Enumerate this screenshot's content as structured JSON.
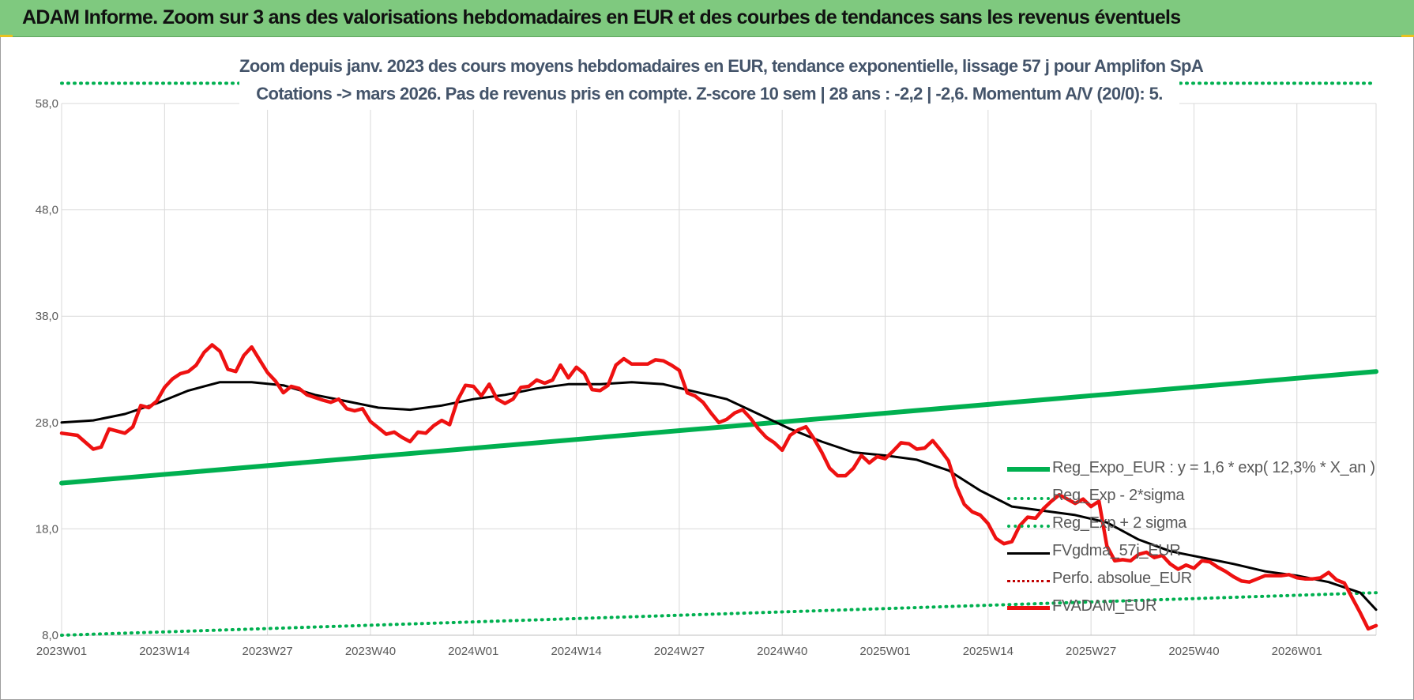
{
  "header": {
    "title": "ADAM Informe. Zoom sur 3 ans des valorisations hebdomadaires en EUR et des courbes de tendances sans les revenus éventuels"
  },
  "colors": {
    "header_bg": "#7fc97f",
    "reg_expo": "#00b050",
    "fvadam": "#ee1111",
    "fvgdma": "#000000",
    "perfo": "#c00000",
    "subtitle": "#44546a"
  },
  "chart_data": {
    "type": "line",
    "title_lines": [
      "Zoom depuis janv. 2023 des cours moyens hebdomadaires en EUR, tendance exponentielle, lissage 57 j pour Amplifon SpA",
      "Cotations -> mars 2026. Pas de revenus pris en compte. Z-score 10 sem | 28 ans : -2,2 | -2,6. Momentum A/V (20/0): 5."
    ],
    "x_ticks": [
      "2023W01",
      "2023W14",
      "2023W27",
      "2023W40",
      "2024W01",
      "2024W14",
      "2024W27",
      "2024W40",
      "2025W01",
      "2025W14",
      "2025W27",
      "2025W40",
      "2026W01"
    ],
    "x_range_weeks": [
      0,
      166
    ],
    "y_ticks": [
      "8,0",
      "18,0",
      "28,0",
      "38,0",
      "48,0",
      "58,0"
    ],
    "ylim": [
      8,
      58
    ],
    "grid": true,
    "legend_position": "bottom-right",
    "series": [
      {
        "name": "Reg_Expo_EUR : y = 1,6 * exp( 12,3% *  X_an )",
        "style": "solid-thick",
        "color": "#00b050",
        "points": [
          [
            0,
            22.3
          ],
          [
            166,
            32.8
          ]
        ]
      },
      {
        "name": "Reg_Exp - 2*sigma",
        "style": "dotted",
        "color": "#00b050",
        "points": [
          [
            0,
            8.0
          ],
          [
            166,
            12.0
          ]
        ]
      },
      {
        "name": "Reg_Exp + 2 sigma",
        "style": "dotted",
        "color": "#00b050",
        "points": [
          [
            0,
            59.9
          ],
          [
            166,
            59.9
          ]
        ]
      },
      {
        "name": "FVgdma_57j_EUR",
        "style": "solid",
        "color": "#000000",
        "points": [
          [
            0,
            28.0
          ],
          [
            4,
            28.2
          ],
          [
            8,
            28.8
          ],
          [
            12,
            29.8
          ],
          [
            16,
            31.0
          ],
          [
            20,
            31.8
          ],
          [
            24,
            31.8
          ],
          [
            28,
            31.5
          ],
          [
            32,
            30.6
          ],
          [
            36,
            30.0
          ],
          [
            40,
            29.4
          ],
          [
            44,
            29.2
          ],
          [
            48,
            29.6
          ],
          [
            52,
            30.2
          ],
          [
            56,
            30.6
          ],
          [
            60,
            31.2
          ],
          [
            64,
            31.6
          ],
          [
            68,
            31.6
          ],
          [
            72,
            31.8
          ],
          [
            76,
            31.6
          ],
          [
            80,
            30.9
          ],
          [
            84,
            30.2
          ],
          [
            88,
            28.8
          ],
          [
            92,
            27.4
          ],
          [
            96,
            26.2
          ],
          [
            100,
            25.2
          ],
          [
            104,
            24.9
          ],
          [
            108,
            24.5
          ],
          [
            112,
            23.5
          ],
          [
            116,
            21.6
          ],
          [
            120,
            20.1
          ],
          [
            124,
            19.7
          ],
          [
            128,
            19.3
          ],
          [
            132,
            18.6
          ],
          [
            136,
            17.0
          ],
          [
            140,
            15.9
          ],
          [
            144,
            15.3
          ],
          [
            148,
            14.7
          ],
          [
            152,
            14.0
          ],
          [
            156,
            13.6
          ],
          [
            160,
            13.0
          ],
          [
            164,
            12.0
          ],
          [
            166,
            10.4
          ]
        ]
      },
      {
        "name": "Perfo. absolue_EUR",
        "style": "dotted",
        "color": "#c00000",
        "points": []
      },
      {
        "name": "FVADAM_EUR",
        "style": "solid-thick",
        "color": "#ee1111",
        "points": [
          [
            0,
            27.0
          ],
          [
            2,
            26.8
          ],
          [
            4,
            25.5
          ],
          [
            5,
            25.7
          ],
          [
            6,
            27.4
          ],
          [
            8,
            27.0
          ],
          [
            9,
            27.6
          ],
          [
            10,
            29.6
          ],
          [
            11,
            29.4
          ],
          [
            12,
            30.0
          ],
          [
            13,
            31.3
          ],
          [
            14,
            32.1
          ],
          [
            15,
            32.6
          ],
          [
            16,
            32.8
          ],
          [
            17,
            33.4
          ],
          [
            18,
            34.6
          ],
          [
            19,
            35.3
          ],
          [
            20,
            34.7
          ],
          [
            21,
            33.0
          ],
          [
            22,
            32.8
          ],
          [
            23,
            34.3
          ],
          [
            24,
            35.1
          ],
          [
            25,
            33.9
          ],
          [
            26,
            32.7
          ],
          [
            27,
            31.9
          ],
          [
            28,
            30.8
          ],
          [
            29,
            31.4
          ],
          [
            30,
            31.2
          ],
          [
            31,
            30.6
          ],
          [
            33,
            30.1
          ],
          [
            34,
            29.9
          ],
          [
            35,
            30.2
          ],
          [
            36,
            29.3
          ],
          [
            37,
            29.1
          ],
          [
            38,
            29.3
          ],
          [
            39,
            28.1
          ],
          [
            40,
            27.5
          ],
          [
            41,
            26.9
          ],
          [
            42,
            27.1
          ],
          [
            43,
            26.6
          ],
          [
            44,
            26.2
          ],
          [
            45,
            27.1
          ],
          [
            46,
            27.0
          ],
          [
            47,
            27.7
          ],
          [
            48,
            28.2
          ],
          [
            49,
            27.8
          ],
          [
            50,
            30.1
          ],
          [
            51,
            31.5
          ],
          [
            52,
            31.4
          ],
          [
            53,
            30.5
          ],
          [
            54,
            31.6
          ],
          [
            55,
            30.2
          ],
          [
            56,
            29.8
          ],
          [
            57,
            30.2
          ],
          [
            58,
            31.3
          ],
          [
            59,
            31.4
          ],
          [
            60,
            32.0
          ],
          [
            61,
            31.7
          ],
          [
            62,
            32.0
          ],
          [
            63,
            33.4
          ],
          [
            64,
            32.2
          ],
          [
            65,
            33.2
          ],
          [
            66,
            32.6
          ],
          [
            67,
            31.1
          ],
          [
            68,
            31.0
          ],
          [
            69,
            31.5
          ],
          [
            70,
            33.4
          ],
          [
            71,
            34.0
          ],
          [
            72,
            33.5
          ],
          [
            74,
            33.5
          ],
          [
            75,
            33.9
          ],
          [
            76,
            33.8
          ],
          [
            77,
            33.4
          ],
          [
            78,
            32.9
          ],
          [
            79,
            30.8
          ],
          [
            80,
            30.5
          ],
          [
            81,
            29.9
          ],
          [
            82,
            28.9
          ],
          [
            83,
            28.0
          ],
          [
            84,
            28.3
          ],
          [
            85,
            28.9
          ],
          [
            86,
            29.2
          ],
          [
            87,
            28.4
          ],
          [
            88,
            27.4
          ],
          [
            89,
            26.6
          ],
          [
            90,
            26.1
          ],
          [
            91,
            25.4
          ],
          [
            92,
            26.8
          ],
          [
            93,
            27.3
          ],
          [
            94,
            27.6
          ],
          [
            95,
            26.5
          ],
          [
            96,
            25.2
          ],
          [
            97,
            23.7
          ],
          [
            98,
            23.0
          ],
          [
            99,
            23.0
          ],
          [
            100,
            23.7
          ],
          [
            101,
            24.9
          ],
          [
            102,
            24.2
          ],
          [
            103,
            24.8
          ],
          [
            104,
            24.6
          ],
          [
            105,
            25.3
          ],
          [
            106,
            26.1
          ],
          [
            107,
            26.0
          ],
          [
            108,
            25.5
          ],
          [
            109,
            25.6
          ],
          [
            110,
            26.3
          ],
          [
            111,
            25.4
          ],
          [
            112,
            24.4
          ],
          [
            113,
            22.0
          ],
          [
            114,
            20.3
          ],
          [
            115,
            19.6
          ],
          [
            116,
            19.3
          ],
          [
            117,
            18.5
          ],
          [
            118,
            17.1
          ],
          [
            119,
            16.6
          ],
          [
            120,
            16.8
          ],
          [
            121,
            18.3
          ],
          [
            122,
            19.1
          ],
          [
            123,
            19.0
          ],
          [
            124,
            19.9
          ],
          [
            125,
            20.6
          ],
          [
            126,
            21.2
          ],
          [
            127,
            20.8
          ],
          [
            128,
            20.4
          ],
          [
            129,
            20.8
          ],
          [
            130,
            20.1
          ],
          [
            131,
            20.6
          ],
          [
            132,
            16.4
          ],
          [
            133,
            15.0
          ],
          [
            134,
            15.1
          ],
          [
            135,
            15.0
          ],
          [
            136,
            15.6
          ],
          [
            137,
            15.8
          ],
          [
            138,
            15.3
          ],
          [
            139,
            15.5
          ],
          [
            140,
            14.7
          ],
          [
            141,
            14.2
          ],
          [
            142,
            14.6
          ],
          [
            143,
            14.3
          ],
          [
            144,
            15.0
          ],
          [
            145,
            14.9
          ],
          [
            146,
            14.4
          ],
          [
            147,
            14.0
          ],
          [
            148,
            13.5
          ],
          [
            149,
            13.1
          ],
          [
            150,
            13.0
          ],
          [
            151,
            13.3
          ],
          [
            152,
            13.6
          ],
          [
            153,
            13.6
          ],
          [
            154,
            13.6
          ],
          [
            155,
            13.7
          ],
          [
            156,
            13.4
          ],
          [
            157,
            13.3
          ],
          [
            158,
            13.3
          ],
          [
            159,
            13.4
          ],
          [
            160,
            13.9
          ],
          [
            161,
            13.2
          ],
          [
            162,
            12.9
          ],
          [
            163,
            11.5
          ],
          [
            164,
            10.1
          ],
          [
            165,
            8.6
          ],
          [
            166,
            8.9
          ]
        ]
      }
    ]
  }
}
